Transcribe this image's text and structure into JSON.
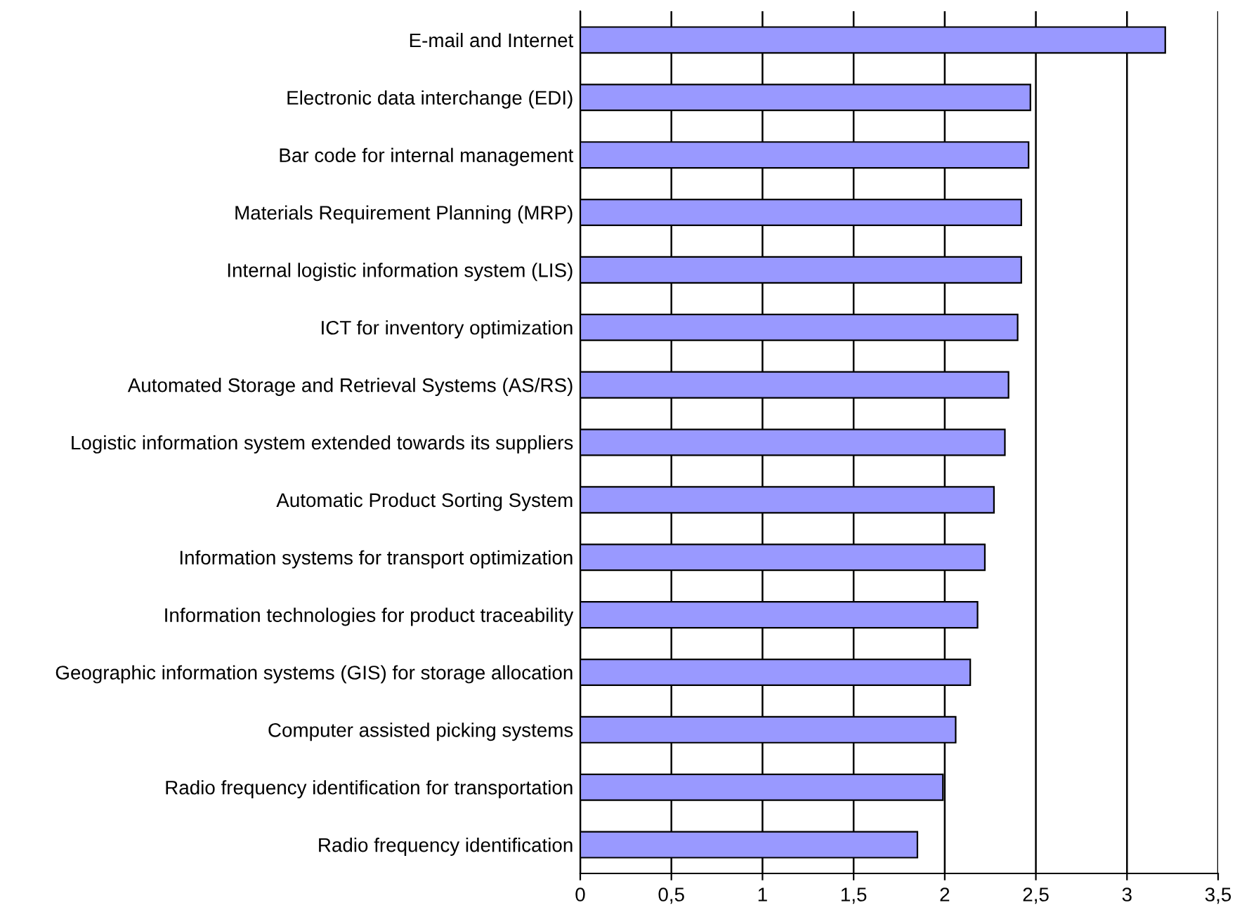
{
  "chart_data": {
    "type": "bar",
    "orientation": "horizontal",
    "color": "#9999ff",
    "grid": "x",
    "categories": [
      "E-mail and Internet",
      "Electronic data interchange (EDI)",
      "Bar code for internal management",
      "Materials Requirement Planning (MRP)",
      "Internal logistic information system (LIS)",
      "ICT for inventory optimization",
      "Automated Storage and Retrieval Systems (AS/RS)",
      "Logistic information system extended towards its suppliers",
      "Automatic Product Sorting System",
      "Information systems for transport optimization",
      "Information technologies for product traceability",
      "Geographic information systems (GIS) for storage allocation",
      "Computer assisted picking systems",
      "Radio frequency identification for transportation",
      "Radio frequency identification"
    ],
    "values": [
      3.21,
      2.47,
      2.46,
      2.42,
      2.42,
      2.4,
      2.35,
      2.33,
      2.27,
      2.22,
      2.18,
      2.14,
      2.06,
      1.99,
      1.85
    ],
    "xlim": [
      0,
      3.5
    ],
    "xticks": [
      0,
      {
        "value": 0.5,
        "label": "0,5"
      },
      1,
      {
        "value": 1.5,
        "label": "1,5"
      },
      2,
      {
        "value": 2.5,
        "label": "2,5"
      },
      3,
      {
        "value": 3.5,
        "label": "3,5"
      }
    ]
  }
}
